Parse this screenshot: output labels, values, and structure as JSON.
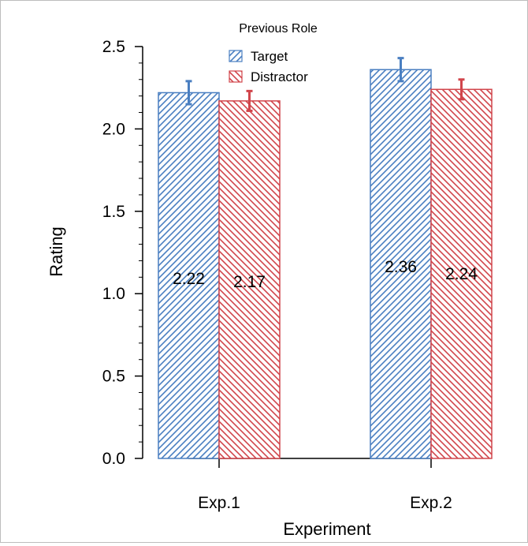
{
  "chart_data": {
    "type": "bar",
    "title": "",
    "xlabel": "Experiment",
    "ylabel": "Rating",
    "ylim": [
      0,
      2.5
    ],
    "yticks": [
      "0.0",
      "0.5",
      "1.0",
      "1.5",
      "2.0",
      "2.5"
    ],
    "categories": [
      "Exp.1",
      "Exp.2"
    ],
    "legend": {
      "title": "Previous Role",
      "position": "top-center"
    },
    "series": [
      {
        "name": "Target",
        "color": "#4a7fc1",
        "pattern": "hatch-forward",
        "values": [
          2.22,
          2.36
        ],
        "error_low": [
          2.15,
          2.29
        ],
        "error_high": [
          2.29,
          2.43
        ],
        "labels": [
          "2.22",
          "2.36"
        ]
      },
      {
        "name": "Distractor",
        "color": "#d1454b",
        "pattern": "hatch-back",
        "values": [
          2.17,
          2.24
        ],
        "error_low": [
          2.11,
          2.18
        ],
        "error_high": [
          2.23,
          2.3
        ],
        "labels": [
          "2.17",
          "2.24"
        ]
      }
    ],
    "grid": false
  }
}
